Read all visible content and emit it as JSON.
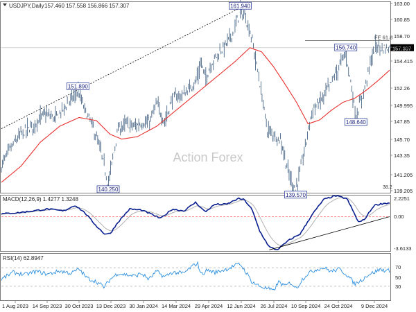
{
  "chart_data": [
    {
      "type": "ohlc",
      "panel": "price",
      "title": "USDJPY,Daily",
      "ohlc_values": "157.460 157.558 156.866 157.307",
      "y_ticks": [
        "163.00",
        "160.85",
        "158.70",
        "156.560",
        "154.415",
        "152.26",
        "149.995",
        "147.85",
        "145.70",
        "143.35",
        "141.205",
        "139.205"
      ],
      "ylim": [
        139.205,
        163.0
      ],
      "watermark": "Action Forex",
      "last_price": "157.307",
      "fib_level": {
        "label": "FE 61.8",
        "value": 158.2
      },
      "fib_low_label": "38.2",
      "series_colors": {
        "bars": "#4a6888",
        "sma": "#e8302e",
        "trendline": "#000000"
      },
      "sma_shown": true,
      "x_labels": [
        "1 Aug 2023",
        "14 Sep 2023",
        "30 Oct 2023",
        "13 Dec 2023",
        "30 Jan 2024",
        "14 Mar 2024",
        "29 Apr 2024",
        "12 Jun 2024",
        "26 Jul 2024",
        "10 Sep 2024",
        "24 Oct 2024",
        "9 Dec 2024"
      ],
      "annotations": [
        {
          "label": "161.940",
          "value": 161.94,
          "x_fraction": 0.615
        },
        {
          "label": "151.890",
          "value": 151.89,
          "x_fraction": 0.197
        },
        {
          "label": "140.250",
          "value": 140.25,
          "x_fraction": 0.275
        },
        {
          "label": "139.570",
          "value": 139.57,
          "x_fraction": 0.758
        },
        {
          "label": "156.740",
          "value": 156.74,
          "x_fraction": 0.887
        },
        {
          "label": "148.640",
          "value": 148.64,
          "x_fraction": 0.913
        }
      ],
      "anchors": [
        [
          0,
          142.5
        ],
        [
          0.02,
          144.5
        ],
        [
          0.05,
          146.5
        ],
        [
          0.08,
          147.5
        ],
        [
          0.11,
          149
        ],
        [
          0.14,
          148.5
        ],
        [
          0.17,
          150.3
        ],
        [
          0.197,
          151.89
        ],
        [
          0.215,
          149.5
        ],
        [
          0.235,
          147.5
        ],
        [
          0.255,
          144.5
        ],
        [
          0.275,
          140.25
        ],
        [
          0.285,
          143
        ],
        [
          0.3,
          147
        ],
        [
          0.32,
          147.8
        ],
        [
          0.345,
          147.5
        ],
        [
          0.365,
          148
        ],
        [
          0.38,
          147.8
        ],
        [
          0.4,
          150.3
        ],
        [
          0.42,
          148
        ],
        [
          0.44,
          151
        ],
        [
          0.47,
          151.5
        ],
        [
          0.5,
          153
        ],
        [
          0.515,
          155.5
        ],
        [
          0.525,
          153.5
        ],
        [
          0.545,
          155.7
        ],
        [
          0.575,
          157.5
        ],
        [
          0.6,
          159.5
        ],
        [
          0.615,
          161.94
        ],
        [
          0.63,
          161
        ],
        [
          0.645,
          158.5
        ],
        [
          0.665,
          153
        ],
        [
          0.685,
          147
        ],
        [
          0.7,
          146.5
        ],
        [
          0.72,
          145.8
        ],
        [
          0.74,
          141.5
        ],
        [
          0.758,
          139.57
        ],
        [
          0.77,
          142
        ],
        [
          0.785,
          145.5
        ],
        [
          0.8,
          149.5
        ],
        [
          0.82,
          150.5
        ],
        [
          0.845,
          152.5
        ],
        [
          0.865,
          154.5
        ],
        [
          0.887,
          156.74
        ],
        [
          0.9,
          153
        ],
        [
          0.913,
          148.64
        ],
        [
          0.925,
          150.5
        ],
        [
          0.94,
          153
        ],
        [
          0.95,
          155.5
        ],
        [
          0.965,
          157.6
        ],
        [
          0.98,
          157.2
        ],
        [
          1.0,
          157.307
        ]
      ],
      "sma_anchors": [
        [
          0,
          140.5
        ],
        [
          0.05,
          142.5
        ],
        [
          0.1,
          145.5
        ],
        [
          0.15,
          147.5
        ],
        [
          0.2,
          148.6
        ],
        [
          0.245,
          148.2
        ],
        [
          0.28,
          146.5
        ],
        [
          0.31,
          145.9
        ],
        [
          0.35,
          146.2
        ],
        [
          0.4,
          147.5
        ],
        [
          0.45,
          149.5
        ],
        [
          0.5,
          151.5
        ],
        [
          0.55,
          153.5
        ],
        [
          0.6,
          155.5
        ],
        [
          0.64,
          157.3
        ],
        [
          0.67,
          156.8
        ],
        [
          0.7,
          155
        ],
        [
          0.73,
          152.8
        ],
        [
          0.76,
          150.5
        ],
        [
          0.79,
          147.8
        ],
        [
          0.82,
          148.3
        ],
        [
          0.85,
          149.5
        ],
        [
          0.88,
          150.5
        ],
        [
          0.91,
          151
        ],
        [
          0.94,
          152
        ],
        [
          0.97,
          153.2
        ],
        [
          1.0,
          154.5
        ]
      ],
      "trendline_points": [
        [
          0,
          147.2
        ],
        [
          0.612,
          162.2
        ]
      ]
    },
    {
      "type": "line",
      "panel": "macd",
      "title": "MACD(12,26,9) 1.4277 1.3248",
      "y_ticks": [
        "2.2251",
        "0.00",
        "-3.6133"
      ],
      "ylim": [
        -3.6133,
        2.2251
      ],
      "series_colors": {
        "macd": "#0a1f8f",
        "signal": "#b0b0b0",
        "zero_line": "#ff6b6b"
      },
      "anchors": [
        [
          0,
          0.3
        ],
        [
          0.04,
          0.4
        ],
        [
          0.08,
          0.6
        ],
        [
          0.12,
          0.8
        ],
        [
          0.16,
          0.6
        ],
        [
          0.19,
          1.2
        ],
        [
          0.215,
          0.4
        ],
        [
          0.245,
          -1.0
        ],
        [
          0.265,
          -1.8
        ],
        [
          0.28,
          -1.8
        ],
        [
          0.3,
          -0.6
        ],
        [
          0.33,
          0.8
        ],
        [
          0.36,
          0.7
        ],
        [
          0.39,
          0.2
        ],
        [
          0.41,
          -0.2
        ],
        [
          0.44,
          0.8
        ],
        [
          0.47,
          0.6
        ],
        [
          0.5,
          1.5
        ],
        [
          0.525,
          0.5
        ],
        [
          0.55,
          1.3
        ],
        [
          0.58,
          1.3
        ],
        [
          0.61,
          1.9
        ],
        [
          0.625,
          1.8
        ],
        [
          0.645,
          0.8
        ],
        [
          0.665,
          -1.5
        ],
        [
          0.69,
          -3.2
        ],
        [
          0.71,
          -3.5
        ],
        [
          0.74,
          -2.5
        ],
        [
          0.77,
          -1.8
        ],
        [
          0.8,
          0.2
        ],
        [
          0.83,
          1.8
        ],
        [
          0.86,
          2.2
        ],
        [
          0.89,
          1.9
        ],
        [
          0.92,
          -0.6
        ],
        [
          0.935,
          -0.3
        ],
        [
          0.96,
          1.2
        ],
        [
          0.985,
          1.4
        ],
        [
          1.0,
          1.43
        ]
      ],
      "trendline_points": [
        [
          0.69,
          -3.5
        ],
        [
          1.0,
          0.0
        ]
      ]
    },
    {
      "type": "line",
      "panel": "rsi",
      "title": "RSI(14) 62.8947",
      "y_ticks": [
        "70",
        "50",
        "30"
      ],
      "ylim": [
        0,
        100
      ],
      "last_value": 62.8947,
      "series_colors": {
        "rsi": "#2b8fe0",
        "levels": "#aaaaaa"
      },
      "anchors": [
        [
          0,
          45
        ],
        [
          0.03,
          60
        ],
        [
          0.06,
          55
        ],
        [
          0.09,
          62
        ],
        [
          0.12,
          56
        ],
        [
          0.15,
          63
        ],
        [
          0.18,
          58
        ],
        [
          0.2,
          67
        ],
        [
          0.22,
          48
        ],
        [
          0.245,
          40
        ],
        [
          0.265,
          28
        ],
        [
          0.28,
          45
        ],
        [
          0.3,
          58
        ],
        [
          0.32,
          55
        ],
        [
          0.345,
          52
        ],
        [
          0.36,
          58
        ],
        [
          0.38,
          45
        ],
        [
          0.4,
          62
        ],
        [
          0.42,
          50
        ],
        [
          0.44,
          60
        ],
        [
          0.47,
          58
        ],
        [
          0.49,
          72
        ],
        [
          0.505,
          80
        ],
        [
          0.515,
          55
        ],
        [
          0.53,
          65
        ],
        [
          0.55,
          60
        ],
        [
          0.58,
          67
        ],
        [
          0.6,
          74
        ],
        [
          0.615,
          78
        ],
        [
          0.63,
          60
        ],
        [
          0.645,
          40
        ],
        [
          0.665,
          30
        ],
        [
          0.685,
          25
        ],
        [
          0.7,
          20
        ],
        [
          0.715,
          40
        ],
        [
          0.73,
          30
        ],
        [
          0.745,
          38
        ],
        [
          0.76,
          25
        ],
        [
          0.775,
          45
        ],
        [
          0.79,
          58
        ],
        [
          0.81,
          66
        ],
        [
          0.83,
          70
        ],
        [
          0.85,
          62
        ],
        [
          0.87,
          67
        ],
        [
          0.89,
          55
        ],
        [
          0.91,
          35
        ],
        [
          0.925,
          42
        ],
        [
          0.945,
          55
        ],
        [
          0.96,
          60
        ],
        [
          0.975,
          66
        ],
        [
          1.0,
          62.89
        ]
      ]
    }
  ]
}
